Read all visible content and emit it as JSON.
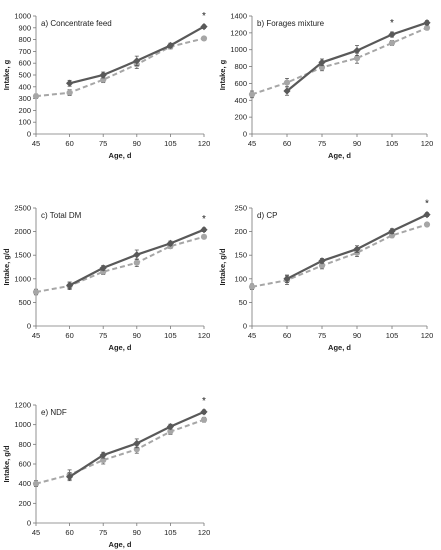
{
  "chart_data": [
    {
      "type": "line",
      "title": "a) Concentrate feed",
      "xlabel": "Age, d",
      "ylabel": "Intake, g",
      "x": [
        45,
        60,
        75,
        90,
        105,
        120
      ],
      "xticks": [
        "45",
        "60",
        "75",
        "90",
        "105",
        "120"
      ],
      "ylim": [
        0,
        1000
      ],
      "yticks": [
        "0",
        "100",
        "200",
        "300",
        "400",
        "500",
        "600",
        "700",
        "800",
        "900",
        "1000"
      ],
      "grid": false,
      "series": [
        {
          "style": "solid",
          "marker": "diamond",
          "color": "#595959",
          "values": [
            null,
            430,
            500,
            620,
            750,
            910
          ],
          "errors": [
            null,
            25,
            25,
            40,
            20,
            15
          ]
        },
        {
          "style": "dashed",
          "marker": "circle",
          "color": "#a6a6a6",
          "values": [
            320,
            350,
            460,
            590,
            740,
            810
          ],
          "errors": [
            20,
            25,
            25,
            35,
            20,
            15
          ]
        }
      ],
      "annotation": "*",
      "annotation_x": 120
    },
    {
      "type": "line",
      "title": "b) Forages mixture",
      "xlabel": "Age, d",
      "ylabel": "Intake, g",
      "x": [
        45,
        60,
        75,
        90,
        105,
        120
      ],
      "xticks": [
        "45",
        "60",
        "75",
        "90",
        "105",
        "120"
      ],
      "ylim": [
        0,
        1400
      ],
      "yticks": [
        "0",
        "200",
        "400",
        "600",
        "800",
        "1000",
        "1200",
        "1400"
      ],
      "grid": false,
      "series": [
        {
          "style": "solid",
          "marker": "diamond",
          "color": "#595959",
          "values": [
            null,
            510,
            850,
            990,
            1180,
            1320
          ],
          "errors": [
            null,
            50,
            40,
            60,
            30,
            25
          ]
        },
        {
          "style": "dashed",
          "marker": "circle",
          "color": "#a6a6a6",
          "values": [
            470,
            610,
            790,
            900,
            1080,
            1260
          ],
          "errors": [
            40,
            50,
            40,
            60,
            30,
            25
          ]
        }
      ],
      "annotation": "*",
      "annotation_x": 105
    },
    {
      "type": "line",
      "title": "c) Total DM",
      "xlabel": "Age, d",
      "ylabel": "Intake, g/d",
      "x": [
        45,
        60,
        75,
        90,
        105,
        120
      ],
      "xticks": [
        "45",
        "60",
        "75",
        "90",
        "105",
        "120"
      ],
      "ylim": [
        0,
        2500
      ],
      "yticks": [
        "0",
        "500",
        "1000",
        "1500",
        "2000",
        "2500"
      ],
      "grid": false,
      "series": [
        {
          "style": "solid",
          "marker": "diamond",
          "color": "#595959",
          "values": [
            null,
            860,
            1230,
            1510,
            1750,
            2040
          ],
          "errors": [
            null,
            70,
            50,
            100,
            50,
            40
          ]
        },
        {
          "style": "dashed",
          "marker": "circle",
          "color": "#a6a6a6",
          "values": [
            720,
            850,
            1150,
            1340,
            1690,
            1890
          ],
          "errors": [
            60,
            80,
            60,
            80,
            50,
            40
          ]
        }
      ],
      "annotation": "*",
      "annotation_x": 120
    },
    {
      "type": "line",
      "title": "d) CP",
      "xlabel": "Age, d",
      "ylabel": "Intake, g/d",
      "x": [
        45,
        60,
        75,
        90,
        105,
        120
      ],
      "xticks": [
        "45",
        "60",
        "75",
        "90",
        "105",
        "120"
      ],
      "ylim": [
        0,
        250
      ],
      "yticks": [
        "0",
        "50",
        "100",
        "150",
        "200",
        "250"
      ],
      "grid": false,
      "series": [
        {
          "style": "solid",
          "marker": "diamond",
          "color": "#595959",
          "values": [
            null,
            100,
            138,
            163,
            201,
            236
          ],
          "errors": [
            null,
            8,
            5,
            7,
            5,
            4
          ]
        },
        {
          "style": "dashed",
          "marker": "circle",
          "color": "#a6a6a6",
          "values": [
            83,
            97,
            128,
            155,
            192,
            215
          ],
          "errors": [
            6,
            9,
            7,
            8,
            5,
            4
          ]
        }
      ],
      "annotation": "*",
      "annotation_x": 120
    },
    {
      "type": "line",
      "title": "e) NDF",
      "xlabel": "Age, d",
      "ylabel": "Intake, g/d",
      "x": [
        45,
        60,
        75,
        90,
        105,
        120
      ],
      "xticks": [
        "45",
        "60",
        "75",
        "90",
        "105",
        "120"
      ],
      "ylim": [
        0,
        1200
      ],
      "yticks": [
        "0",
        "200",
        "400",
        "600",
        "800",
        "1000",
        "1200"
      ],
      "grid": false,
      "series": [
        {
          "style": "solid",
          "marker": "diamond",
          "color": "#595959",
          "values": [
            null,
            470,
            690,
            810,
            980,
            1130
          ],
          "errors": [
            null,
            40,
            30,
            45,
            25,
            20
          ]
        },
        {
          "style": "dashed",
          "marker": "circle",
          "color": "#a6a6a6",
          "values": [
            400,
            490,
            640,
            750,
            930,
            1050
          ],
          "errors": [
            30,
            50,
            40,
            40,
            30,
            25
          ]
        }
      ],
      "annotation": "*",
      "annotation_x": 120
    }
  ]
}
